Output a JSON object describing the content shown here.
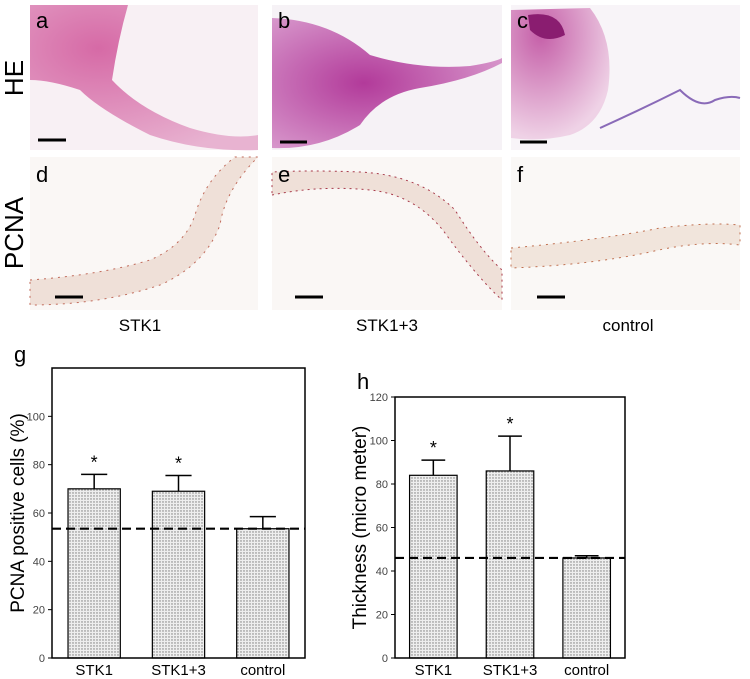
{
  "figure": {
    "panel_letters": [
      "a",
      "b",
      "c",
      "d",
      "e",
      "f"
    ],
    "row_labels": [
      "HE",
      "PCNA"
    ],
    "column_labels": [
      "STK1",
      "STK1+3",
      "control"
    ]
  },
  "chart_data": [
    {
      "type": "bar",
      "panel_label": "g",
      "y_label": "PCNA positive cells (%)",
      "categories": [
        "STK1",
        "STK1+3",
        "control"
      ],
      "values": [
        70,
        69,
        53.5
      ],
      "errors": [
        6,
        6.5,
        5
      ],
      "ylim": [
        0,
        120
      ],
      "yticks": [
        0,
        20,
        40,
        60,
        80,
        100
      ],
      "reference_line": 53.5,
      "annotations": [
        {
          "x": "STK1",
          "text": "*"
        },
        {
          "x": "STK1+3",
          "text": "*"
        }
      ]
    },
    {
      "type": "bar",
      "panel_label": "h",
      "y_label": "Thickness (micro meter)",
      "categories": [
        "STK1",
        "STK1+3",
        "control"
      ],
      "values": [
        84,
        86,
        46
      ],
      "errors": [
        7,
        16,
        1
      ],
      "ylim": [
        0,
        120
      ],
      "yticks": [
        0,
        20,
        40,
        60,
        80,
        100,
        120
      ],
      "reference_line": 46,
      "annotations": [
        {
          "x": "STK1",
          "text": "*"
        },
        {
          "x": "STK1+3",
          "text": "*"
        }
      ]
    }
  ]
}
